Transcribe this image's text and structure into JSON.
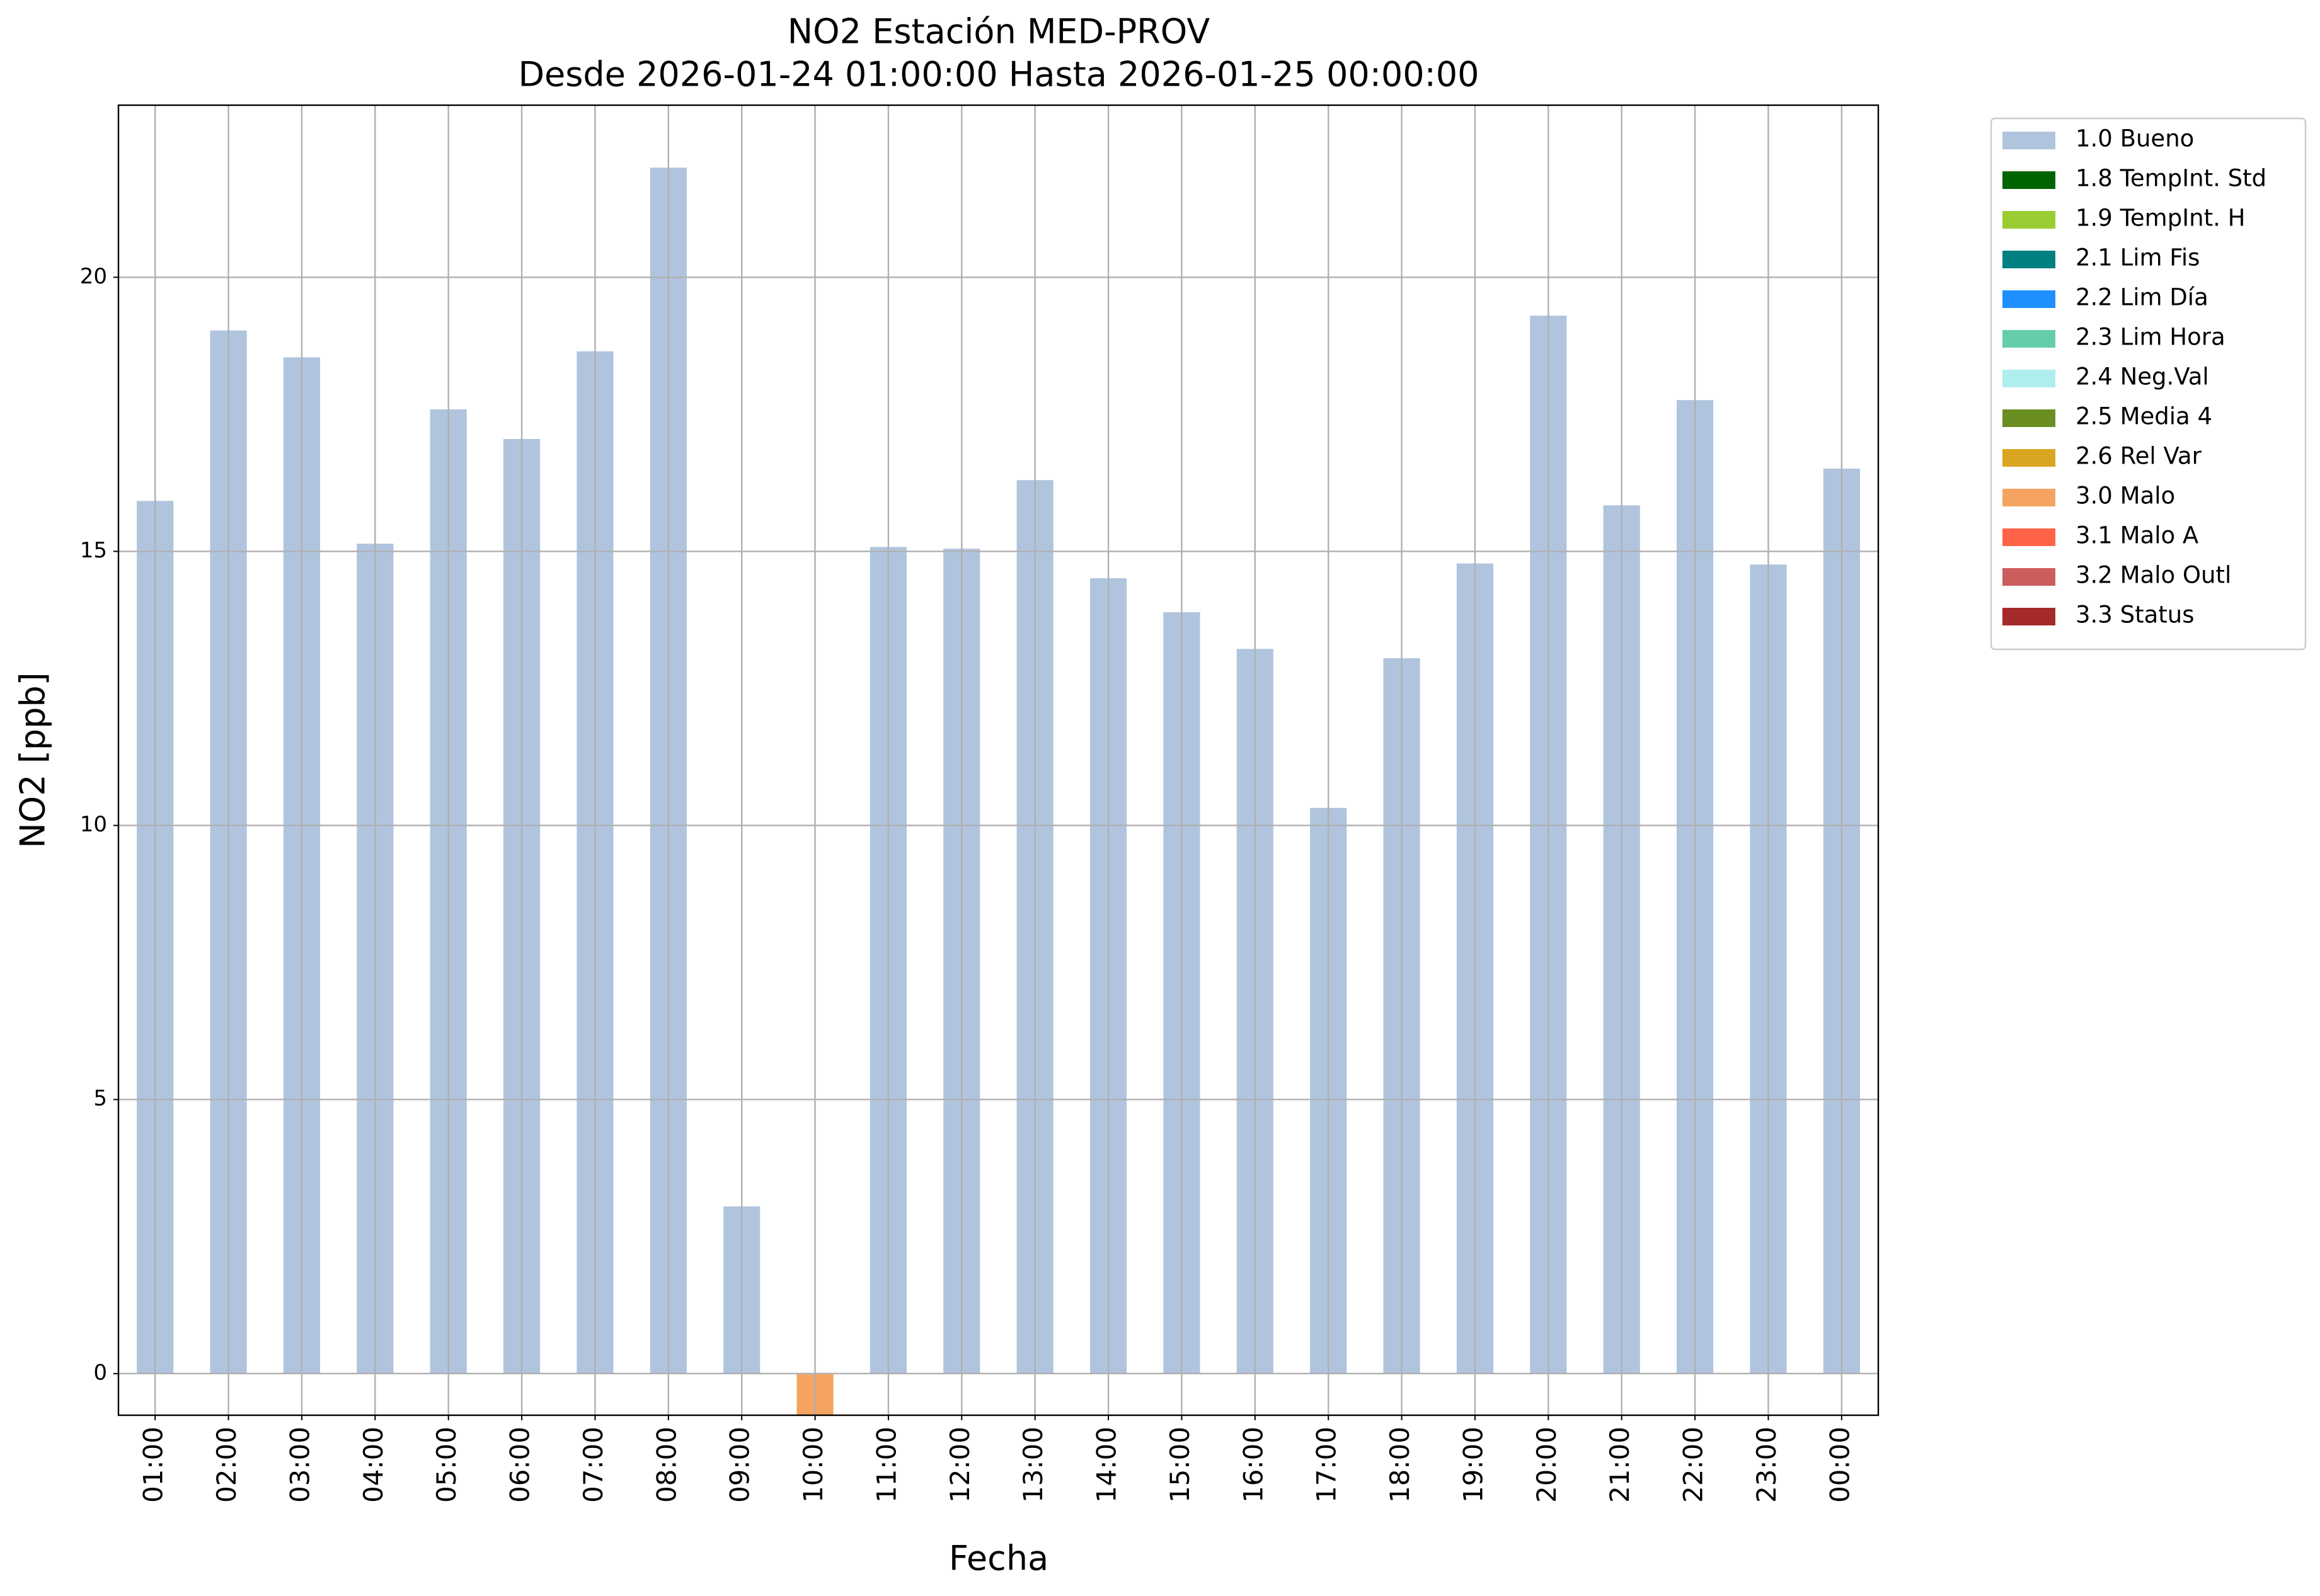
{
  "chart_data": {
    "type": "bar",
    "title": "NO2 Estación MED-PROV",
    "subtitle": "Desde 2026-01-24 01:00:00 Hasta 2026-01-25 00:00:00",
    "x_label": "Fecha",
    "y_label": "NO2 [ppb]",
    "categories": [
      "01:00",
      "02:00",
      "03:00",
      "04:00",
      "05:00",
      "06:00",
      "07:00",
      "08:00",
      "09:00",
      "10:00",
      "11:00",
      "12:00",
      "13:00",
      "14:00",
      "15:00",
      "16:00",
      "17:00",
      "18:00",
      "19:00",
      "20:00",
      "21:00",
      "22:00",
      "23:00",
      "00:00"
    ],
    "series": [
      {
        "name": "1.0 Bueno",
        "color": "#b0c4de",
        "values": [
          15.92,
          19.03,
          18.54,
          15.14,
          17.59,
          17.05,
          18.65,
          22.0,
          3.05,
          null,
          15.08,
          15.05,
          16.3,
          14.51,
          13.89,
          13.22,
          10.32,
          13.05,
          14.78,
          19.3,
          15.84,
          17.76,
          14.76,
          16.51
        ]
      },
      {
        "name": "1.8 TempInt. Std",
        "color": "#006400",
        "values": [
          null,
          null,
          null,
          null,
          null,
          null,
          null,
          null,
          null,
          null,
          null,
          null,
          null,
          null,
          null,
          null,
          null,
          null,
          null,
          null,
          null,
          null,
          null,
          null
        ]
      },
      {
        "name": "1.9 TempInt. H",
        "color": "#9acd32",
        "values": [
          null,
          null,
          null,
          null,
          null,
          null,
          null,
          null,
          null,
          null,
          null,
          null,
          null,
          null,
          null,
          null,
          null,
          null,
          null,
          null,
          null,
          null,
          null,
          null
        ]
      },
      {
        "name": "2.1 Lim Fis",
        "color": "#008080",
        "values": [
          null,
          null,
          null,
          null,
          null,
          null,
          null,
          null,
          null,
          null,
          null,
          null,
          null,
          null,
          null,
          null,
          null,
          null,
          null,
          null,
          null,
          null,
          null,
          null
        ]
      },
      {
        "name": "2.2 Lim Día",
        "color": "#1e90ff",
        "values": [
          null,
          null,
          null,
          null,
          null,
          null,
          null,
          null,
          null,
          null,
          null,
          null,
          null,
          null,
          null,
          null,
          null,
          null,
          null,
          null,
          null,
          null,
          null,
          null
        ]
      },
      {
        "name": "2.3 Lim Hora",
        "color": "#66cdaa",
        "values": [
          null,
          null,
          null,
          null,
          null,
          null,
          null,
          null,
          null,
          null,
          null,
          null,
          null,
          null,
          null,
          null,
          null,
          null,
          null,
          null,
          null,
          null,
          null,
          null
        ]
      },
      {
        "name": "2.4 Neg.Val",
        "color": "#afeeee",
        "values": [
          null,
          null,
          null,
          null,
          null,
          null,
          null,
          null,
          null,
          null,
          null,
          null,
          null,
          null,
          null,
          null,
          null,
          null,
          null,
          null,
          null,
          null,
          null,
          null
        ]
      },
      {
        "name": "2.5 Media 4",
        "color": "#6b8e23",
        "values": [
          null,
          null,
          null,
          null,
          null,
          null,
          null,
          null,
          null,
          null,
          null,
          null,
          null,
          null,
          null,
          null,
          null,
          null,
          null,
          null,
          null,
          null,
          null,
          null
        ]
      },
      {
        "name": "2.6 Rel Var",
        "color": "#daa520",
        "values": [
          null,
          null,
          null,
          null,
          null,
          null,
          null,
          null,
          null,
          null,
          null,
          null,
          null,
          null,
          null,
          null,
          null,
          null,
          null,
          null,
          null,
          null,
          null,
          null
        ]
      },
      {
        "name": "3.0 Malo",
        "color": "#f4a460",
        "values": [
          null,
          null,
          null,
          null,
          null,
          null,
          null,
          null,
          null,
          -0.76,
          null,
          null,
          null,
          null,
          null,
          null,
          null,
          null,
          null,
          null,
          null,
          null,
          null,
          null
        ]
      },
      {
        "name": "3.1 Malo A",
        "color": "#ff6347",
        "values": [
          null,
          null,
          null,
          null,
          null,
          null,
          null,
          null,
          null,
          null,
          null,
          null,
          null,
          null,
          null,
          null,
          null,
          null,
          null,
          null,
          null,
          null,
          null,
          null
        ]
      },
      {
        "name": "3.2 Malo Outl",
        "color": "#cd5c5c",
        "values": [
          null,
          null,
          null,
          null,
          null,
          null,
          null,
          null,
          null,
          null,
          null,
          null,
          null,
          null,
          null,
          null,
          null,
          null,
          null,
          null,
          null,
          null,
          null,
          null
        ]
      },
      {
        "name": "3.3 Status",
        "color": "#a52a2a",
        "values": [
          null,
          null,
          null,
          null,
          null,
          null,
          null,
          null,
          null,
          null,
          null,
          null,
          null,
          null,
          null,
          null,
          null,
          null,
          null,
          null,
          null,
          null,
          null,
          null
        ]
      }
    ],
    "ylim": [
      -0.76,
      23.14
    ],
    "yticks": [
      0,
      5,
      10,
      15,
      20
    ],
    "grid": true,
    "legend": "outside upper right"
  }
}
